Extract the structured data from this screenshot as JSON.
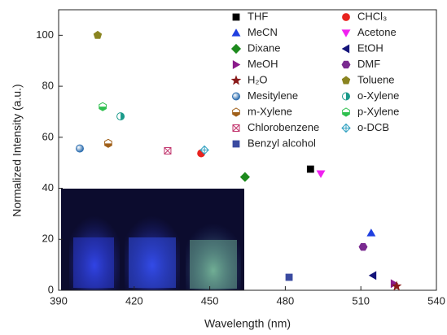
{
  "chart_data": {
    "type": "scatter",
    "x_label": "Wavelength (nm)",
    "y_label": "Normalized Intensity (a.u.)",
    "xlim": [
      390,
      540
    ],
    "xticks": [
      390,
      420,
      450,
      480,
      510,
      540
    ],
    "ylim": [
      0,
      110
    ],
    "yticks": [
      0,
      20,
      40,
      60,
      80,
      100
    ],
    "series": [
      {
        "name": "THF",
        "color": "#000000",
        "marker": "square",
        "x": [
          490
        ],
        "values": [
          47.5
        ]
      },
      {
        "name": "CHCl₃",
        "color": "#e8231f",
        "marker": "circle",
        "x": [
          446.6
        ],
        "values": [
          53.7
        ]
      },
      {
        "name": "MeCN",
        "color": "#1f3fe0",
        "marker": "triangle-up",
        "x": [
          514.1
        ],
        "values": [
          22.5
        ]
      },
      {
        "name": "Acetone",
        "color": "#f020f0",
        "marker": "triangle-down",
        "x": [
          494.1
        ],
        "values": [
          45.7
        ]
      },
      {
        "name": "Dixane",
        "color": "#1d8a1d",
        "marker": "diamond",
        "x": [
          464
        ],
        "values": [
          44.4
        ]
      },
      {
        "name": "EtOH",
        "color": "#14147a",
        "marker": "triangle-left",
        "x": [
          514.8
        ],
        "values": [
          5.8
        ]
      },
      {
        "name": "MeOH",
        "color": "#8a1a8a",
        "marker": "triangle-right",
        "x": [
          523.2
        ],
        "values": [
          2.6
        ]
      },
      {
        "name": "DMF",
        "color": "#7a2a90",
        "marker": "hexagon",
        "x": [
          510.9
        ],
        "values": [
          17
        ]
      },
      {
        "name": "H₂O",
        "color": "#8a1a1a",
        "marker": "star",
        "x": [
          524.2
        ],
        "values": [
          1.6
        ]
      },
      {
        "name": "Toluene",
        "color": "#8a8420",
        "marker": "pentagon",
        "x": [
          405.5
        ],
        "values": [
          100
        ]
      },
      {
        "name": "Mesitylene",
        "color": "#2f6fb0",
        "marker": "sphere",
        "x": [
          398.4
        ],
        "values": [
          55.6
        ]
      },
      {
        "name": "o-Xylene",
        "color": "#1a9a8a",
        "marker": "half-circle",
        "x": [
          414.6
        ],
        "values": [
          68.2
        ]
      },
      {
        "name": "m-Xylene",
        "color": "#a0601a",
        "marker": "half-hexagon",
        "x": [
          409.7
        ],
        "values": [
          57.6
        ]
      },
      {
        "name": "p-Xylene",
        "color": "#2fc04f",
        "marker": "half-hexagon",
        "x": [
          407.5
        ],
        "values": [
          72
        ]
      },
      {
        "name": "Chlorobenzene",
        "color": "#c0306a",
        "marker": "crossed-square",
        "x": [
          433.3
        ],
        "values": [
          54.7
        ]
      },
      {
        "name": "o-DCB",
        "color": "#30a0c0",
        "marker": "crossed-diamond",
        "x": [
          447.9
        ],
        "values": [
          55
        ]
      },
      {
        "name": "Benzyl alcohol",
        "color": "#3a4aa0",
        "marker": "square",
        "x": [
          481.5
        ],
        "values": [
          5.1
        ]
      }
    ]
  }
}
